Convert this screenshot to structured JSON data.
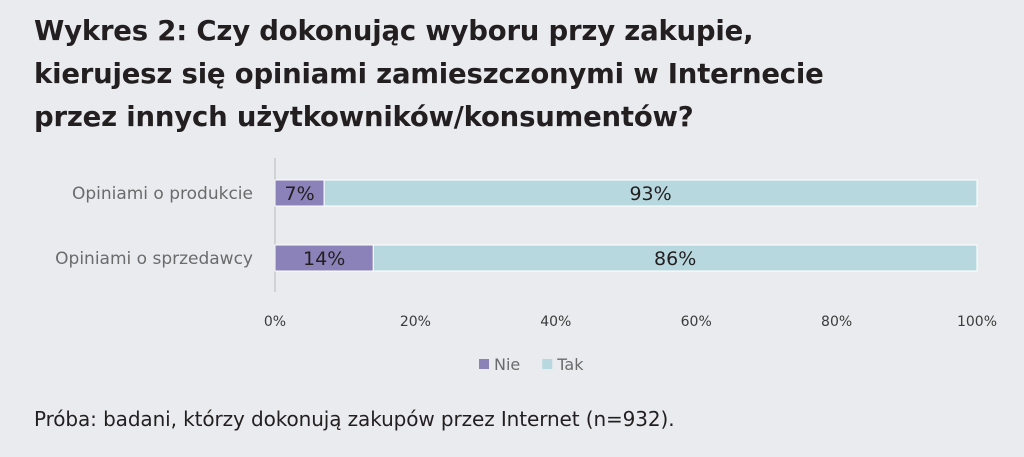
{
  "title_lines": [
    "Wykres 2: Czy dokonując wyboru przy zakupie,",
    "kierujesz się opiniami zamieszczonymi w Internecie",
    "przez innych użytkowników/konsumentów?"
  ],
  "footnote": "Próba: badani, którzy dokonują zakupów przez Internet (n=932).",
  "colors": {
    "Nie": "#8a82b8",
    "Tak": "#b8d8df"
  },
  "chart_data": {
    "type": "bar",
    "orientation": "horizontal",
    "stacked": true,
    "percent": true,
    "title": "Wykres 2: Czy dokonując wyboru przy zakupie, kierujesz się opiniami zamieszczonymi w Internecie przez innych użytkowników/konsumentów?",
    "categories": [
      "Opiniami o produkcie",
      "Opiniami o sprzedawcy"
    ],
    "series": [
      {
        "name": "Nie",
        "values": [
          7,
          14
        ],
        "labels": [
          "7%",
          "14%"
        ]
      },
      {
        "name": "Tak",
        "values": [
          93,
          86
        ],
        "labels": [
          "93%",
          "86%"
        ]
      }
    ],
    "xlim": [
      0,
      100
    ],
    "xticks": [
      0,
      20,
      40,
      60,
      80,
      100
    ],
    "xtick_labels": [
      "0%",
      "20%",
      "40%",
      "60%",
      "80%",
      "100%"
    ],
    "xlabel": "",
    "ylabel": "",
    "grid": false,
    "legend": [
      "Nie",
      "Tak"
    ],
    "legend_position": "bottom"
  }
}
